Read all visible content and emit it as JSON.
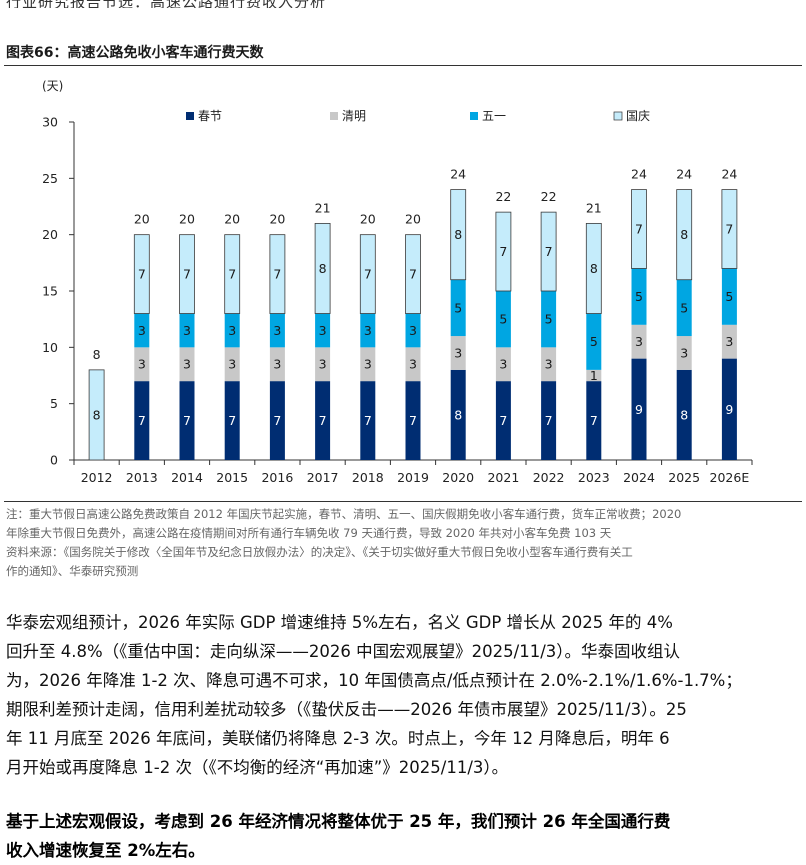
{
  "header_fragment": "行业研究报告节选：高速公路通行费收入分析",
  "figure": {
    "label": "图表66：",
    "title": "高速公路免收小客车通行费天数"
  },
  "chart_data": {
    "type": "bar",
    "stacked": true,
    "title": "高速公路免收小客车通行费天数",
    "ylabel": "(天)",
    "xlabel": "",
    "ylim": [
      0,
      30
    ],
    "yticks": [
      0,
      5,
      10,
      15,
      20,
      25,
      30
    ],
    "grid": false,
    "legend_position": "top",
    "categories": [
      "2012",
      "2013",
      "2014",
      "2015",
      "2016",
      "2017",
      "2018",
      "2019",
      "2020",
      "2021",
      "2022",
      "2023",
      "2024",
      "2025",
      "2026E"
    ],
    "series": [
      {
        "name": "春节",
        "color": "#002d72",
        "label_color": "#ffffff",
        "values": [
          0,
          7,
          7,
          7,
          7,
          7,
          7,
          7,
          8,
          7,
          7,
          7,
          9,
          8,
          9
        ]
      },
      {
        "name": "清明",
        "color": "#c8c8c8",
        "label_color": "#1a1a1a",
        "values": [
          0,
          3,
          3,
          3,
          3,
          3,
          3,
          3,
          3,
          3,
          3,
          1,
          3,
          3,
          3
        ]
      },
      {
        "name": "五一",
        "color": "#00a6e2",
        "label_color": "#1a1a1a",
        "values": [
          0,
          3,
          3,
          3,
          3,
          3,
          3,
          3,
          5,
          5,
          5,
          5,
          5,
          5,
          5
        ]
      },
      {
        "name": "国庆",
        "color": "#c5ecfb",
        "label_color": "#1a1a1a",
        "values": [
          8,
          7,
          7,
          7,
          7,
          8,
          7,
          7,
          8,
          7,
          7,
          8,
          7,
          8,
          7
        ]
      }
    ],
    "totals": [
      8,
      20,
      20,
      20,
      20,
      21,
      20,
      20,
      24,
      22,
      22,
      21,
      24,
      24,
      24
    ]
  },
  "notes": {
    "line1": "注：重大节假日高速公路免费政策自 2012 年国庆节起实施，春节、清明、五一、国庆假期免收小客车通行费，货车正常收费；2020",
    "line2": "年除重大节假日免费外，高速公路在疫情期间对所有通行车辆免收 79 天通行费，导致 2020 年共对小客车免费 103 天",
    "line3": "资料来源：《国务院关于修改〈全国年节及纪念日放假办法〉的决定》、《关于切实做好重大节假日免收小型客车通行费有关工",
    "line4": "作的通知》、华泰研究预测"
  },
  "body": {
    "p1_lines": [
      "华泰宏观组预计，2026 年实际 GDP 增速维持 5%左右，名义 GDP 增长从 2025 年的 4%",
      "回升至 4.8%（《重估中国：走向纵深——2026 中国宏观展望》2025/11/3）。华泰固收组认",
      "为，2026 年降准 1-2 次、降息可遇不可求，10 年国债高点/低点预计在 2.0%-2.1%/1.6%-1.7%；",
      "期限利差预计走阔，信用利差扰动较多（《蛰伏反击——2026 年债市展望》2025/11/3）。25",
      "年 11 月底至 2026 年底间，美联储仍将降息 2-3 次。时点上，今年 12 月降息后，明年 6",
      "月开始或再度降息 1-2 次（《不均衡的经济“再加速”》2025/11/3）。"
    ],
    "p2_lines": [
      "基于上述宏观假设，考虑到 26 年经济情况将整体优于 25 年，我们预计 26 年全国通行费",
      "收入增速恢复至 2%左右。"
    ]
  }
}
